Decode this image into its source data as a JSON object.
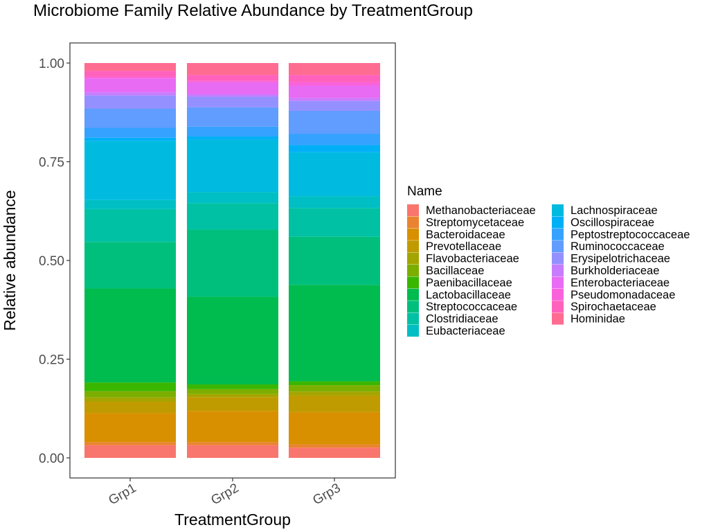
{
  "chart_data": {
    "type": "bar",
    "stacked": true,
    "title": "Microbiome Family Relative Abundance by TreatmentGroup",
    "xlabel": "TreatmentGroup",
    "ylabel": "Relative abundance",
    "ylim": [
      0,
      1.05
    ],
    "yticks": [
      0.0,
      0.25,
      0.5,
      0.75,
      1.0
    ],
    "ytick_labels": [
      "0.00",
      "0.25",
      "0.50",
      "0.75",
      "1.00"
    ],
    "categories": [
      "Grp1",
      "Grp2",
      "Grp3"
    ],
    "legend": {
      "title": "Name",
      "position": "right",
      "columns": 2
    },
    "grid": false,
    "series": [
      {
        "name": "Methanobacteriaceae",
        "color": "#F8766D",
        "values": [
          0.032,
          0.032,
          0.026
        ]
      },
      {
        "name": "Streptomycetaceae",
        "color": "#EA8331",
        "values": [
          0.008,
          0.008,
          0.008
        ]
      },
      {
        "name": "Bacteroidaceae",
        "color": "#D89000",
        "values": [
          0.073,
          0.079,
          0.082
        ]
      },
      {
        "name": "Prevotellaceae",
        "color": "#C09B00",
        "values": [
          0.03,
          0.035,
          0.042
        ]
      },
      {
        "name": "Flavobacteriaceae",
        "color": "#A3A500",
        "values": [
          0.01,
          0.008,
          0.01
        ]
      },
      {
        "name": "Bacillaceae",
        "color": "#7CAE00",
        "values": [
          0.016,
          0.012,
          0.016
        ]
      },
      {
        "name": "Paenibacillaceae",
        "color": "#39B600",
        "values": [
          0.022,
          0.012,
          0.01
        ]
      },
      {
        "name": "Lactobacillaceae",
        "color": "#00BB4E",
        "values": [
          0.238,
          0.222,
          0.244
        ]
      },
      {
        "name": "Streptococcaceae",
        "color": "#00BF7D",
        "values": [
          0.118,
          0.17,
          0.122
        ]
      },
      {
        "name": "Clostridiaceae",
        "color": "#00C1A3",
        "values": [
          0.083,
          0.067,
          0.073
        ]
      },
      {
        "name": "Eubacteriaceae",
        "color": "#00BFC4",
        "values": [
          0.023,
          0.028,
          0.03
        ]
      },
      {
        "name": "Lachnospiraceae",
        "color": "#00BAE0",
        "values": [
          0.15,
          0.133,
          0.111
        ]
      },
      {
        "name": "Oscillospiraceae",
        "color": "#00B0F6",
        "values": [
          0.008,
          0.008,
          0.018
        ]
      },
      {
        "name": "Peptostreptococcaceae",
        "color": "#35A2FF",
        "values": [
          0.025,
          0.025,
          0.029
        ]
      },
      {
        "name": "Ruminococcaceae",
        "color": "#619CFF",
        "values": [
          0.049,
          0.049,
          0.058
        ]
      },
      {
        "name": "Erysipelotrichaceae",
        "color": "#9590FF",
        "values": [
          0.033,
          0.027,
          0.025
        ]
      },
      {
        "name": "Burkholderiaceae",
        "color": "#C77CFF",
        "values": [
          0.008,
          0.006,
          0.007
        ]
      },
      {
        "name": "Enterobacteriaceae",
        "color": "#E76BF3",
        "values": [
          0.035,
          0.03,
          0.032
        ]
      },
      {
        "name": "Pseudomonadaceae",
        "color": "#FA62DB",
        "values": [
          0.004,
          0.004,
          0.008
        ]
      },
      {
        "name": "Spirochaetaceae",
        "color": "#FF62BC",
        "values": [
          0.015,
          0.015,
          0.019
        ]
      },
      {
        "name": "Hominidae",
        "color": "#FF6C91",
        "values": [
          0.02,
          0.03,
          0.03
        ]
      }
    ]
  }
}
